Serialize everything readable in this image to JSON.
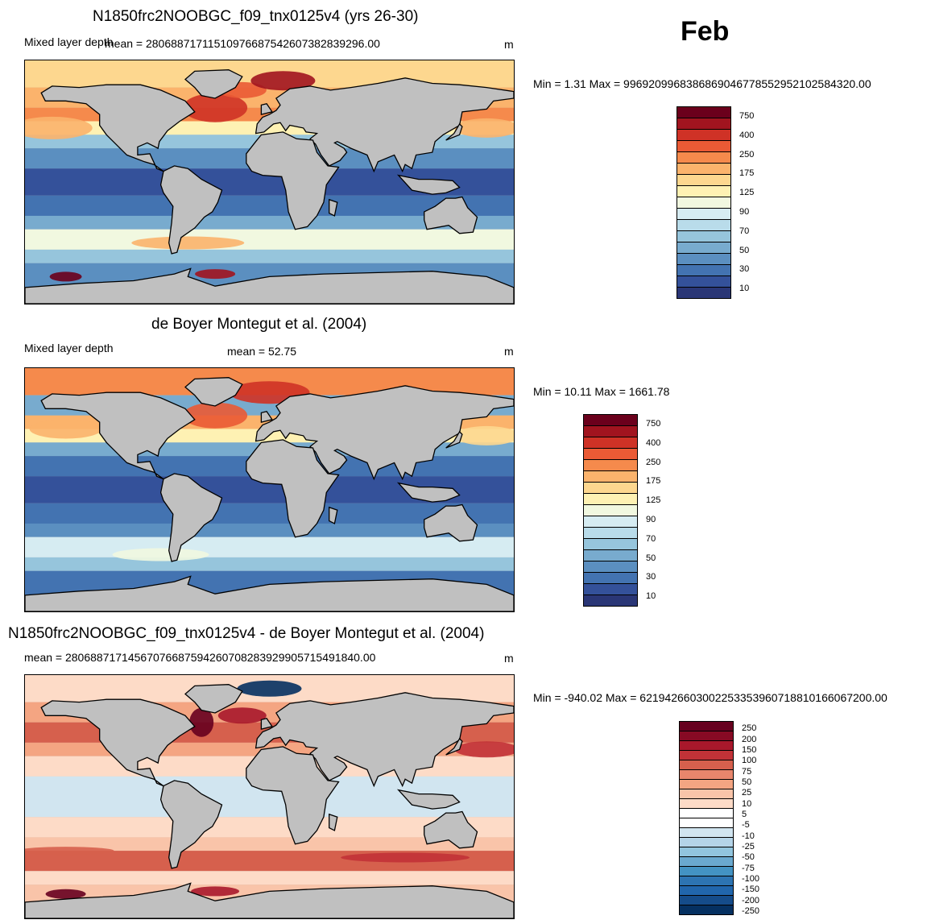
{
  "month": "Feb",
  "panels": [
    {
      "title": "N1850frc2NOOBGC_f09_tnx0125v4 (yrs 26-30)",
      "left_label": "Mixed layer depth",
      "mean_text": "mean = 2806887171151097668754260738283929 6.00",
      "units": "m",
      "minmax": "Min =   1.31 Max = 99692099683868690467785529521025843 20.00",
      "colorbar": {
        "labels": [
          "750",
          "400",
          "250",
          "175",
          "125",
          "90",
          "70",
          "50",
          "30",
          "10"
        ],
        "colors": [
          "#6b001c",
          "#a1141f",
          "#cf3226",
          "#ea5a35",
          "#f58a4c",
          "#fbb36c",
          "#fdd78f",
          "#fef1b3",
          "#f1f8e0",
          "#d6ecf2",
          "#b9dcea",
          "#96c5dc",
          "#78abce",
          "#5b8fc0",
          "#4373b1",
          "#34519a",
          "#2a3676"
        ]
      }
    },
    {
      "title": "de Boyer Montegut et al. (2004)",
      "left_label": "Mixed layer depth",
      "mean_text": "mean =  52.75",
      "units": "m",
      "minmax": "Min =  10.11 Max = 1661.78",
      "colorbar": {
        "labels": [
          "750",
          "400",
          "250",
          "175",
          "125",
          "90",
          "70",
          "50",
          "30",
          "10"
        ],
        "colors": [
          "#6b001c",
          "#a1141f",
          "#cf3226",
          "#ea5a35",
          "#f58a4c",
          "#fbb36c",
          "#fdd78f",
          "#fef1b3",
          "#f1f8e0",
          "#d6ecf2",
          "#b9dcea",
          "#96c5dc",
          "#78abce",
          "#5b8fc0",
          "#4373b1",
          "#34519a",
          "#2a3676"
        ]
      }
    },
    {
      "title": "N1850frc2NOOBGC_f09_tnx0125v4 - de Boyer Montegut et al. (2004)",
      "left_label": "",
      "mean_text": "mean = 28068871714567076687594260708283929905 715491840.00",
      "units": "m",
      "minmax": "Min = -940.02 Max = 62194266030022533539607188101660672 00.00",
      "colorbar": {
        "labels": [
          "250",
          "200",
          "150",
          "100",
          "75",
          "50",
          "25",
          "10",
          "5",
          "-5",
          "-10",
          "-25",
          "-50",
          "-75",
          "-100",
          "-150",
          "-200",
          "-250"
        ],
        "colors": [
          "#67001f",
          "#870a24",
          "#a8182b",
          "#c23237",
          "#d6604d",
          "#e8866c",
          "#f4a582",
          "#f9c4a9",
          "#fddbc7",
          "#ffffff",
          "#ffffff",
          "#d1e5f0",
          "#b4d4e8",
          "#92c5de",
          "#6aa9cf",
          "#4393c3",
          "#2d74b2",
          "#2166ac",
          "#154c8a",
          "#053061"
        ]
      }
    }
  ]
}
